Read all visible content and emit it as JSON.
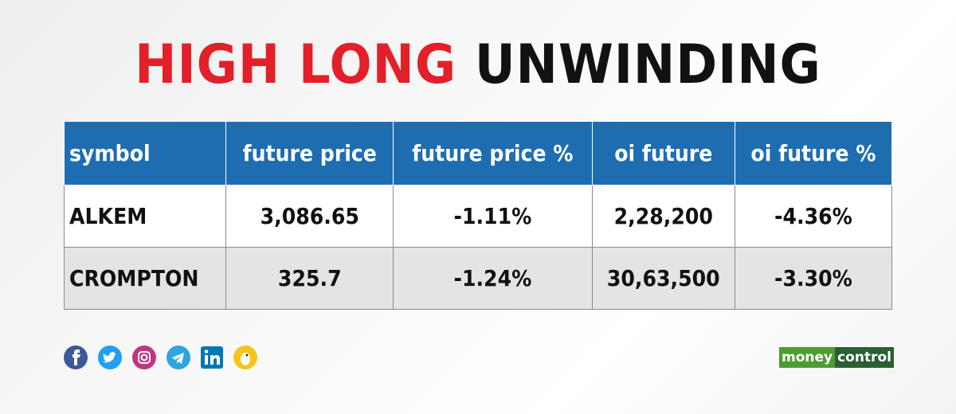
{
  "header": {
    "title_red": "HIGH LONG",
    "title_black": "UNWINDING"
  },
  "table": {
    "columns": [
      "symbol",
      "future price",
      "future price %",
      "oi future",
      "oi future %"
    ],
    "rows": [
      [
        "ALKEM",
        "3,086.65",
        "-1.11%",
        "2,28,200",
        "-4.36%"
      ],
      [
        "CROMPTON",
        "325.7",
        "-1.24%",
        "30,63,500",
        "-3.30%"
      ]
    ]
  },
  "logo": {
    "part1": "money",
    "part2": "control"
  }
}
